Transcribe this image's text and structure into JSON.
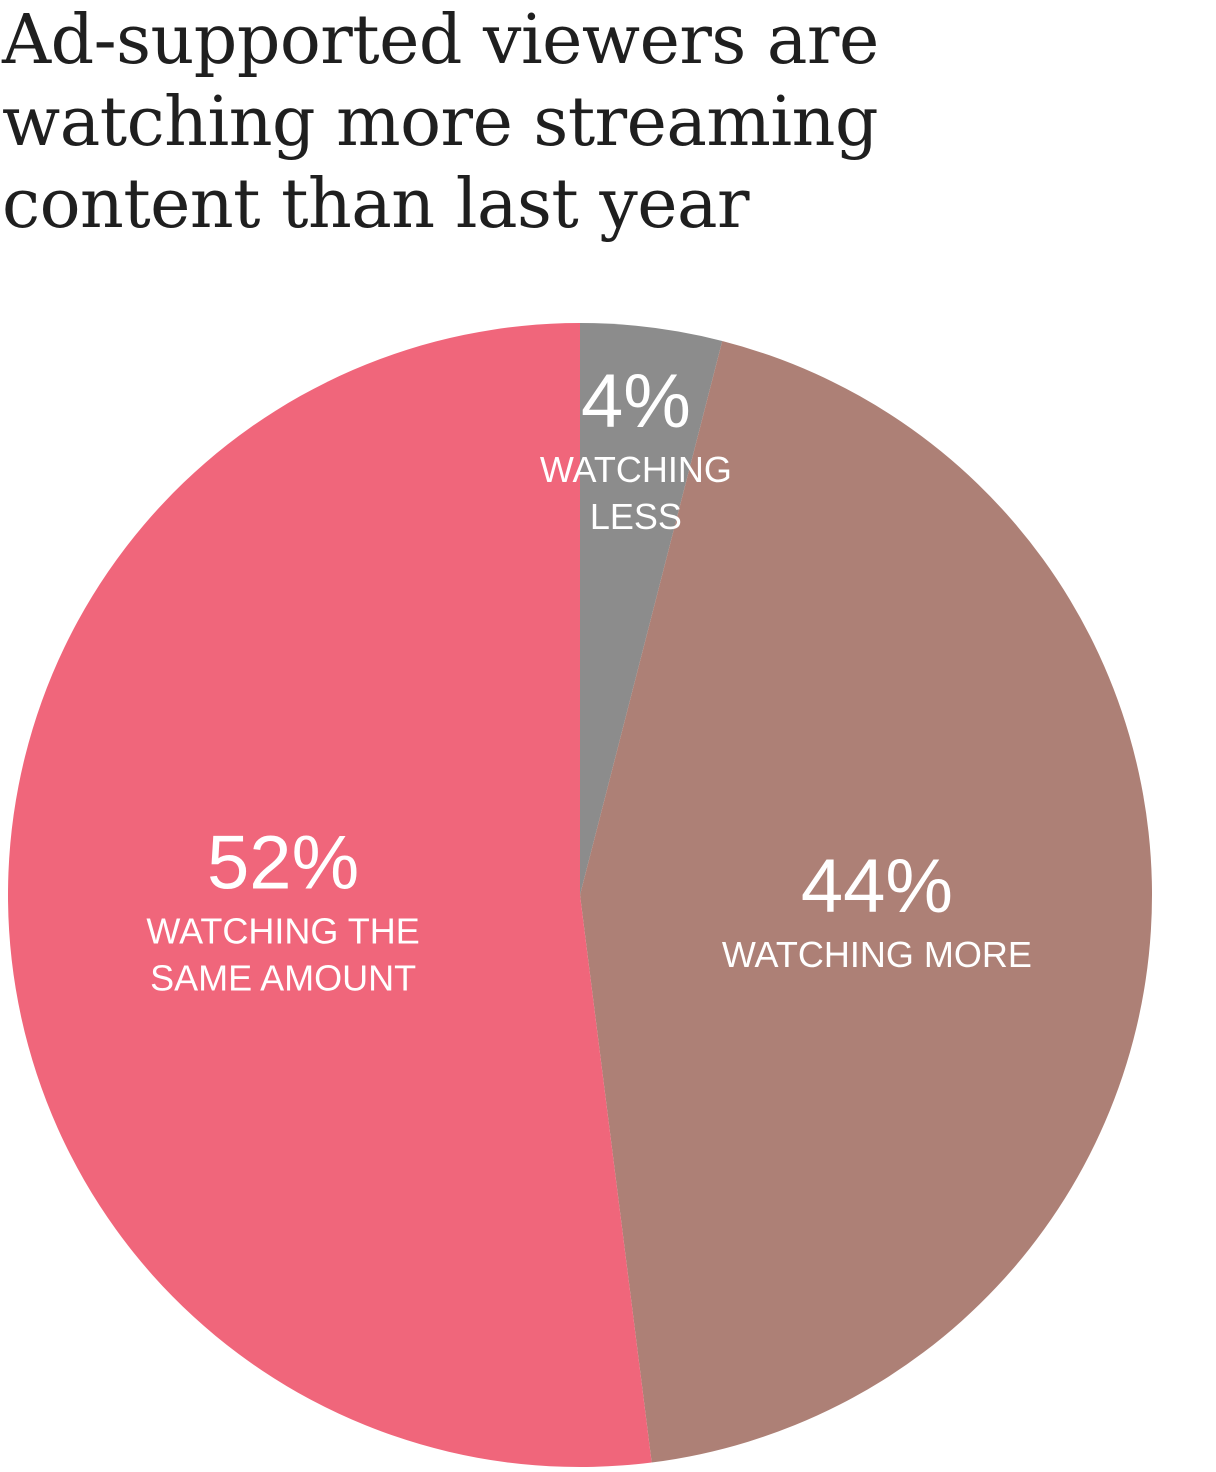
{
  "chart_data": {
    "type": "pie",
    "title_lines": [
      "Ad-supported viewers are",
      "watching more streaming",
      "content than last year"
    ],
    "slices": [
      {
        "value": 4,
        "percent_label": "4%",
        "label_lines": [
          "WATCHING",
          "LESS"
        ],
        "color": "#8c8c8c"
      },
      {
        "value": 44,
        "percent_label": "44%",
        "label_lines": [
          "WATCHING MORE"
        ],
        "color": "#ad8076"
      },
      {
        "value": 52,
        "percent_label": "52%",
        "label_lines": [
          "WATCHING THE",
          "SAME AMOUNT"
        ],
        "color": "#f0667b"
      }
    ]
  }
}
